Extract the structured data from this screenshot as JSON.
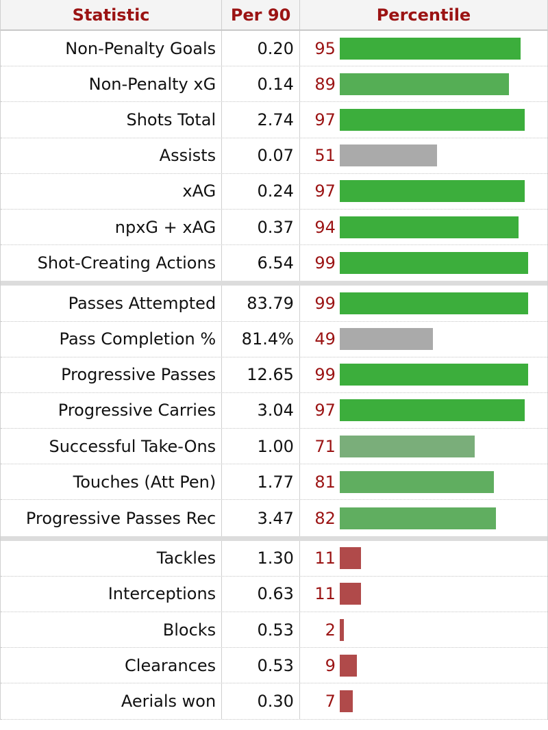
{
  "header": {
    "statistic": "Statistic",
    "per90": "Per 90",
    "percentile": "Percentile"
  },
  "colors": {
    "header_text": "#9b1313",
    "bar_high": "#3cae3c",
    "bar_mid_high": "#5bb05b",
    "bar_mid": "#7aae7a",
    "bar_average": "#aaaaaa",
    "bar_low": "#b04a4a"
  },
  "groups": [
    {
      "rows": [
        {
          "stat": "Non-Penalty Goals",
          "per90": "0.20",
          "pct": "95",
          "pct_value": 95,
          "color": "#3cae3c"
        },
        {
          "stat": "Non-Penalty xG",
          "per90": "0.14",
          "pct": "89",
          "pct_value": 89,
          "color": "#55ae55"
        },
        {
          "stat": "Shots Total",
          "per90": "2.74",
          "pct": "97",
          "pct_value": 97,
          "color": "#3cae3c"
        },
        {
          "stat": "Assists",
          "per90": "0.07",
          "pct": "51",
          "pct_value": 51,
          "color": "#aaaaaa"
        },
        {
          "stat": "xAG",
          "per90": "0.24",
          "pct": "97",
          "pct_value": 97,
          "color": "#3cae3c"
        },
        {
          "stat": "npxG + xAG",
          "per90": "0.37",
          "pct": "94",
          "pct_value": 94,
          "color": "#3cae3c"
        },
        {
          "stat": "Shot-Creating Actions",
          "per90": "6.54",
          "pct": "99",
          "pct_value": 99,
          "color": "#3cae3c"
        }
      ]
    },
    {
      "rows": [
        {
          "stat": "Passes Attempted",
          "per90": "83.79",
          "pct": "99",
          "pct_value": 99,
          "color": "#3cae3c"
        },
        {
          "stat": "Pass Completion %",
          "per90": "81.4%",
          "pct": "49",
          "pct_value": 49,
          "color": "#aaaaaa"
        },
        {
          "stat": "Progressive Passes",
          "per90": "12.65",
          "pct": "99",
          "pct_value": 99,
          "color": "#3cae3c"
        },
        {
          "stat": "Progressive Carries",
          "per90": "3.04",
          "pct": "97",
          "pct_value": 97,
          "color": "#3cae3c"
        },
        {
          "stat": "Successful Take-Ons",
          "per90": "1.00",
          "pct": "71",
          "pct_value": 71,
          "color": "#7aae7a"
        },
        {
          "stat": "Touches (Att Pen)",
          "per90": "1.77",
          "pct": "81",
          "pct_value": 81,
          "color": "#60ae60"
        },
        {
          "stat": "Progressive Passes Rec",
          "per90": "3.47",
          "pct": "82",
          "pct_value": 82,
          "color": "#60ae60"
        }
      ]
    },
    {
      "rows": [
        {
          "stat": "Tackles",
          "per90": "1.30",
          "pct": "11",
          "pct_value": 11,
          "color": "#b04a4a"
        },
        {
          "stat": "Interceptions",
          "per90": "0.63",
          "pct": "11",
          "pct_value": 11,
          "color": "#b04a4a"
        },
        {
          "stat": "Blocks",
          "per90": "0.53",
          "pct": "2",
          "pct_value": 2,
          "color": "#b04a4a"
        },
        {
          "stat": "Clearances",
          "per90": "0.53",
          "pct": "9",
          "pct_value": 9,
          "color": "#b04a4a"
        },
        {
          "stat": "Aerials won",
          "per90": "0.30",
          "pct": "7",
          "pct_value": 7,
          "color": "#b04a4a"
        }
      ]
    }
  ]
}
